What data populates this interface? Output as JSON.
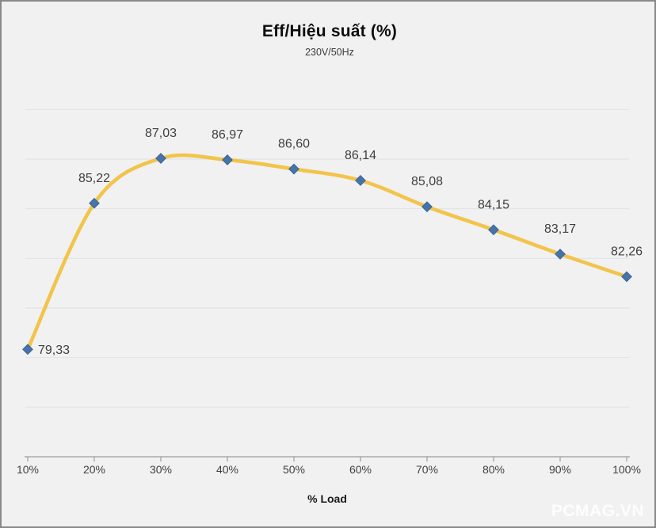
{
  "watermark": "PCMAG.VN",
  "chart_data": {
    "type": "line",
    "title": "Eff/Hiệu suất (%)",
    "subtitle": "230V/50Hz",
    "xlabel": "% Load",
    "categories": [
      "10%",
      "20%",
      "30%",
      "40%",
      "50%",
      "60%",
      "70%",
      "80%",
      "90%",
      "100%"
    ],
    "series": [
      {
        "name": "Eff/Hiệu suất (%)",
        "values": [
          79.33,
          85.22,
          87.03,
          86.97,
          86.6,
          86.14,
          85.08,
          84.15,
          83.17,
          82.26
        ]
      }
    ],
    "data_labels": [
      "79,33",
      "85,22",
      "87,03",
      "86,97",
      "86,60",
      "86,14",
      "85,08",
      "84,15",
      "83,17",
      "82,26"
    ],
    "ylim": [
      75,
      90
    ],
    "grid_values": [
      77,
      79,
      81,
      83,
      85,
      87,
      89
    ],
    "grid_on": true,
    "legend_position": "none",
    "line_smooth": true,
    "colors": {
      "line": "#F2C44B",
      "marker": "#4674A8",
      "marker_edge": "#3B649A",
      "grid": "#DFE3E9",
      "axis": "#9C9C9C",
      "label_text": "#3F3F3F",
      "tick_text": "#404040",
      "background": "#F1F1F2",
      "border": "#8A8A8A",
      "watermark": "#FFFFFF"
    }
  }
}
